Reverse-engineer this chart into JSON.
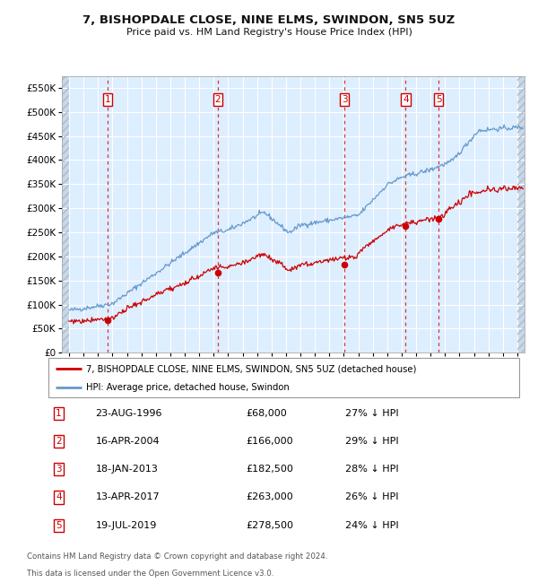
{
  "title": "7, BISHOPDALE CLOSE, NINE ELMS, SWINDON, SN5 5UZ",
  "subtitle": "Price paid vs. HM Land Registry's House Price Index (HPI)",
  "legend_line1": "7, BISHOPDALE CLOSE, NINE ELMS, SWINDON, SN5 5UZ (detached house)",
  "legend_line2": "HPI: Average price, detached house, Swindon",
  "footer1": "Contains HM Land Registry data © Crown copyright and database right 2024.",
  "footer2": "This data is licensed under the Open Government Licence v3.0.",
  "transactions": [
    {
      "num": 1,
      "price": 68000,
      "x_year": 1996.65
    },
    {
      "num": 2,
      "price": 166000,
      "x_year": 2004.29
    },
    {
      "num": 3,
      "price": 182500,
      "x_year": 2013.05
    },
    {
      "num": 4,
      "price": 263000,
      "x_year": 2017.28
    },
    {
      "num": 5,
      "price": 278500,
      "x_year": 2019.55
    }
  ],
  "table_rows": [
    {
      "num": 1,
      "date_str": "23-AUG-1996",
      "price_str": "£68,000",
      "pct_str": "27% ↓ HPI"
    },
    {
      "num": 2,
      "date_str": "16-APR-2004",
      "price_str": "£166,000",
      "pct_str": "29% ↓ HPI"
    },
    {
      "num": 3,
      "date_str": "18-JAN-2013",
      "price_str": "£182,500",
      "pct_str": "28% ↓ HPI"
    },
    {
      "num": 4,
      "date_str": "13-APR-2017",
      "price_str": "£263,000",
      "pct_str": "26% ↓ HPI"
    },
    {
      "num": 5,
      "date_str": "19-JUL-2019",
      "price_str": "£278,500",
      "pct_str": "24% ↓ HPI"
    }
  ],
  "red_color": "#cc0000",
  "blue_color": "#6699cc",
  "bg_color": "#ddeeff",
  "grid_color": "#ffffff",
  "dashed_color": "#dd3333",
  "ylim": [
    0,
    575000
  ],
  "yticks": [
    0,
    50000,
    100000,
    150000,
    200000,
    250000,
    300000,
    350000,
    400000,
    450000,
    500000,
    550000
  ],
  "xlim_start": 1993.5,
  "xlim_end": 2025.5,
  "hatch_right_start": 2025.0,
  "hatch_left_end": 1994.0
}
